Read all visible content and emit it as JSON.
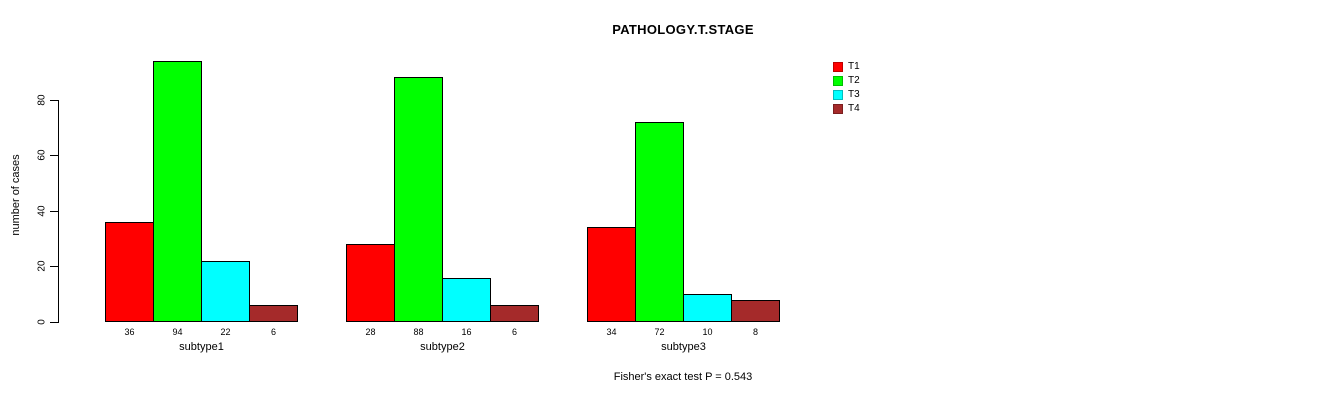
{
  "title": "PATHOLOGY.T.STAGE",
  "footer": "Fisher's exact test P = 0.543",
  "axes": {
    "ylabel": "number of cases",
    "yticks": [
      0,
      20,
      40,
      60,
      80
    ]
  },
  "legend": {
    "position": "right",
    "entries": [
      {
        "label": "T1",
        "color": "#FF0000"
      },
      {
        "label": "T2",
        "color": "#00FF00"
      },
      {
        "label": "T3",
        "color": "#00FFFF"
      },
      {
        "label": "T4",
        "color": "#A52A2A"
      }
    ]
  },
  "chart_data": {
    "type": "bar",
    "title": "PATHOLOGY.T.STAGE",
    "categories": [
      "subtype1",
      "subtype2",
      "subtype3"
    ],
    "series": [
      {
        "name": "T1",
        "color": "#FF0000",
        "values": [
          36,
          28,
          34
        ]
      },
      {
        "name": "T2",
        "color": "#00FF00",
        "values": [
          94,
          88,
          72
        ]
      },
      {
        "name": "T3",
        "color": "#00FFFF",
        "values": [
          22,
          16,
          10
        ]
      },
      {
        "name": "T4",
        "color": "#A52A2A",
        "values": [
          6,
          6,
          8
        ]
      }
    ],
    "xlabel": "",
    "ylabel": "number of cases",
    "yticks": [
      0,
      20,
      40,
      60,
      80
    ],
    "ylim": [
      0,
      96
    ],
    "grid": false,
    "bar_labels": true,
    "legend_position": "right",
    "annotation": "Fisher's exact test P = 0.543"
  }
}
